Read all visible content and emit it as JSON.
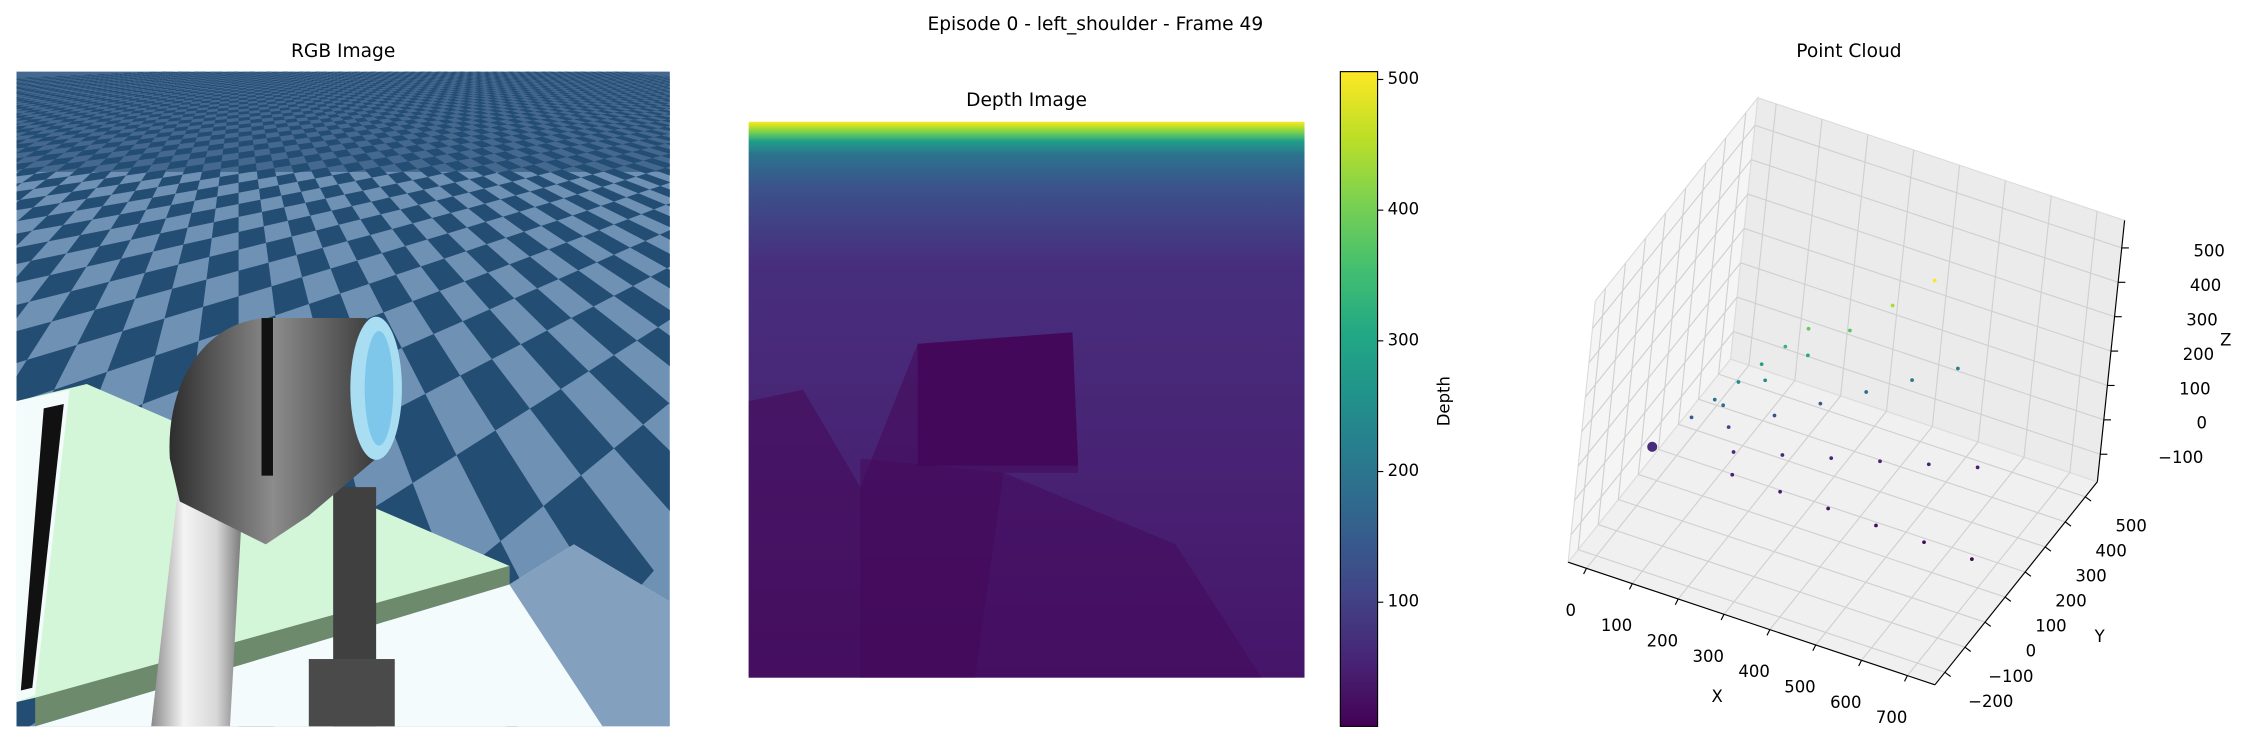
{
  "title": "Episode 0 - left_shoulder - Frame 49",
  "chart_data": [
    {
      "type": "image",
      "title": "RGB Image"
    },
    {
      "type": "image",
      "title": "Depth Image",
      "colormap": "viridis",
      "colorbar_label": "Depth",
      "clim": [
        5,
        506
      ],
      "cticks": [
        100,
        200,
        300,
        400,
        500
      ]
    },
    {
      "type": "scatter3d",
      "title": "Point Cloud",
      "colormap": "viridis",
      "xlabel": "X",
      "ylabel": "Y",
      "zlabel": "Z",
      "xlim": [
        -40,
        760
      ],
      "ylim": [
        -250,
        560
      ],
      "zlim": [
        -180,
        580
      ],
      "xticks": [
        0,
        100,
        200,
        300,
        400,
        500,
        600,
        700
      ],
      "yticks": [
        {
          "value": -200,
          "label": "−200"
        },
        {
          "value": -100,
          "label": "−100"
        },
        0,
        100,
        200,
        300,
        400,
        500
      ],
      "zticks": [
        {
          "value": -100,
          "label": "−100"
        },
        0,
        100,
        200,
        300,
        400,
        500
      ],
      "x": [
        20,
        190,
        292,
        394,
        496,
        598,
        700,
        165,
        252,
        339,
        426,
        513,
        600,
        140,
        212,
        284,
        356,
        428,
        500,
        128,
        192,
        257,
        321,
        386,
        450,
        78,
        112,
        147,
        181,
        216,
        250
      ],
      "y": [
        0,
        13,
        20,
        28,
        35,
        43,
        50,
        75,
        120,
        165,
        210,
        255,
        300,
        100,
        160,
        220,
        280,
        340,
        400,
        88,
        140,
        193,
        245,
        298,
        350,
        50,
        80,
        110,
        140,
        170,
        200
      ],
      "z": [
        0,
        -15,
        -24,
        -33,
        -42,
        -51,
        -60,
        -5,
        -8,
        -11,
        -14,
        -17,
        -20,
        38,
        60,
        83,
        105,
        128,
        150,
        105,
        168,
        231,
        294,
        357,
        420,
        75,
        120,
        165,
        210,
        255,
        300
      ]
    }
  ]
}
